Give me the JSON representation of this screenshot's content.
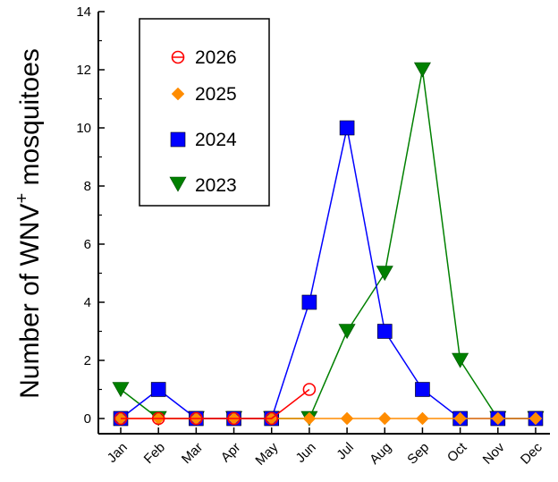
{
  "chart_data": {
    "type": "line",
    "title": "",
    "xlabel": "",
    "ylabel": "Number of WNV + mosquitoes",
    "ylabel_parts": {
      "main": "Number of WNV",
      "superscript": "+",
      "rest": " mosquitoes"
    },
    "categories": [
      "Jan",
      "Feb",
      "Mar",
      "Apr",
      "May",
      "Jun",
      "Jul",
      "Aug",
      "Sep",
      "Oct",
      "Nov",
      "Dec"
    ],
    "ylim": [
      0,
      14
    ],
    "yticks": [
      "0",
      "2",
      "4",
      "6",
      "8",
      "10",
      "12",
      "14"
    ],
    "grid": false,
    "legend_position": "top-left",
    "series": [
      {
        "name": "2026",
        "color": "#ff0000",
        "marker": "open-circle",
        "values": [
          0,
          0,
          0,
          0,
          0,
          1,
          null,
          null,
          null,
          null,
          null,
          null
        ]
      },
      {
        "name": "2025",
        "color": "#ff8c00",
        "marker": "diamond",
        "values": [
          0,
          0,
          0,
          0,
          0,
          0,
          0,
          0,
          0,
          0,
          0,
          0
        ]
      },
      {
        "name": "2024",
        "color": "#0000ff",
        "marker": "square",
        "values": [
          0,
          1,
          0,
          0,
          0,
          4,
          10,
          3,
          1,
          0,
          0,
          0
        ]
      },
      {
        "name": "2023",
        "color": "#008000",
        "marker": "triangle-down",
        "values": [
          1,
          0,
          0,
          0,
          0,
          0,
          3,
          5,
          12,
          2,
          0,
          0
        ]
      }
    ]
  }
}
